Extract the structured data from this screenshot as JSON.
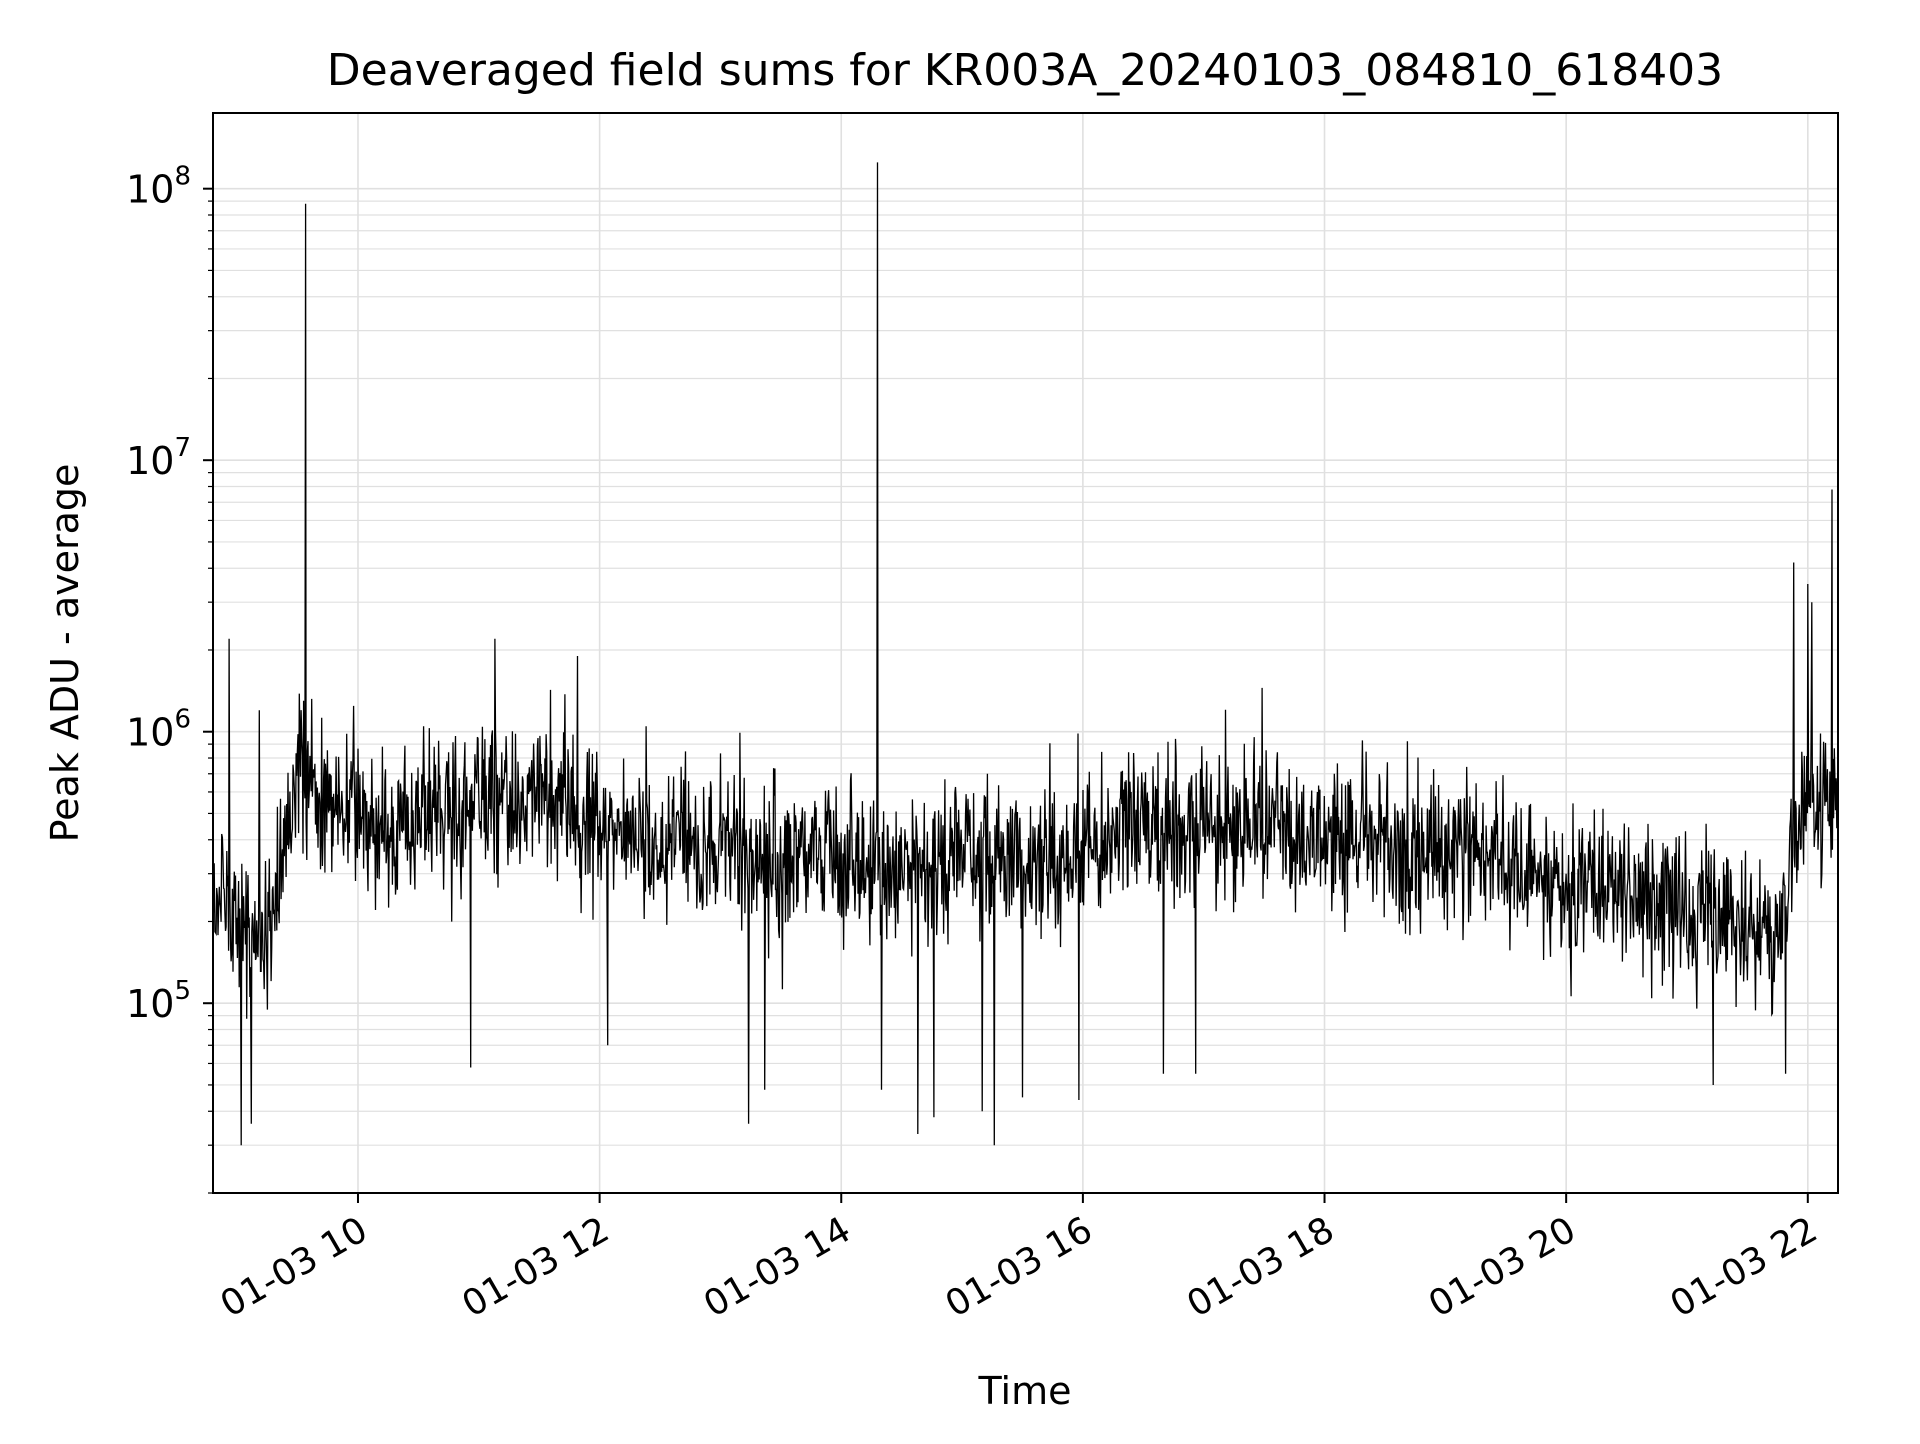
{
  "chart_data": {
    "type": "line",
    "title": "Deaveraged field sums for KR003A_20240103_084810_618403",
    "xlabel": "Time",
    "ylabel": "Peak ADU - average",
    "x_range": [
      "2024-01-03 08:48",
      "2024-01-03 22:15"
    ],
    "y_range": [
      20000,
      190000000
    ],
    "yscale": "log",
    "grid": true,
    "x_tick_values": [
      "2024-01-03 10:00",
      "2024-01-03 12:00",
      "2024-01-03 14:00",
      "2024-01-03 16:00",
      "2024-01-03 18:00",
      "2024-01-03 20:00",
      "2024-01-03 22:00"
    ],
    "x_tick_labels": [
      "01-03 10",
      "01-03 12",
      "01-03 14",
      "01-03 16",
      "01-03 18",
      "01-03 20",
      "01-03 22"
    ],
    "y_tick_values": [
      100000,
      1000000,
      10000000,
      100000000
    ],
    "y_tick_labels": [
      {
        "base": "10",
        "exp": "5"
      },
      {
        "base": "10",
        "exp": "6"
      },
      {
        "base": "10",
        "exp": "7"
      },
      {
        "base": "10",
        "exp": "8"
      }
    ],
    "colors": {
      "line": "#000000",
      "grid": "#e0e0e0",
      "axes": "#000000"
    },
    "series": [
      {
        "x": [
          "2024-01-03 08:50",
          "2024-01-03 09:00",
          "2024-01-03 09:15",
          "2024-01-03 09:30",
          "2024-01-03 09:45",
          "2024-01-03 10:00",
          "2024-01-03 10:15",
          "2024-01-03 10:30",
          "2024-01-03 10:45",
          "2024-01-03 11:00",
          "2024-01-03 11:15",
          "2024-01-03 11:30",
          "2024-01-03 11:45",
          "2024-01-03 12:00",
          "2024-01-03 12:15",
          "2024-01-03 12:30",
          "2024-01-03 12:45",
          "2024-01-03 13:00",
          "2024-01-03 13:15",
          "2024-01-03 13:30",
          "2024-01-03 13:45",
          "2024-01-03 14:00",
          "2024-01-03 14:15",
          "2024-01-03 14:30",
          "2024-01-03 14:45",
          "2024-01-03 15:00",
          "2024-01-03 15:15",
          "2024-01-03 15:30",
          "2024-01-03 15:45",
          "2024-01-03 16:00",
          "2024-01-03 16:15",
          "2024-01-03 16:30",
          "2024-01-03 16:45",
          "2024-01-03 17:00",
          "2024-01-03 17:15",
          "2024-01-03 17:30",
          "2024-01-03 17:45",
          "2024-01-03 18:00",
          "2024-01-03 18:15",
          "2024-01-03 18:30",
          "2024-01-03 18:45",
          "2024-01-03 19:00",
          "2024-01-03 19:15",
          "2024-01-03 19:30",
          "2024-01-03 19:45",
          "2024-01-03 20:00",
          "2024-01-03 20:15",
          "2024-01-03 20:30",
          "2024-01-03 20:45",
          "2024-01-03 21:00",
          "2024-01-03 21:15",
          "2024-01-03 21:30",
          "2024-01-03 21:45",
          "2024-01-03 21:55",
          "2024-01-03 22:05",
          "2024-01-03 22:14"
        ],
        "y": [
          250000,
          200000,
          170000,
          700000,
          550000,
          500000,
          480000,
          520000,
          500000,
          520000,
          580000,
          560000,
          540000,
          430000,
          420000,
          400000,
          380000,
          390000,
          360000,
          350000,
          350000,
          330000,
          320000,
          310000,
          310000,
          330000,
          340000,
          350000,
          360000,
          380000,
          420000,
          430000,
          440000,
          450000,
          460000,
          460000,
          450000,
          440000,
          410000,
          380000,
          350000,
          340000,
          380000,
          320000,
          290000,
          260000,
          250000,
          250000,
          240000,
          230000,
          210000,
          190000,
          180000,
          470000,
          520000,
          560000
        ]
      }
    ],
    "spikes": [
      {
        "x": "2024-01-03 08:56",
        "y": 2200000
      },
      {
        "x": "2024-01-03 09:11",
        "y": 1200000
      },
      {
        "x": "2024-01-03 09:34",
        "y": 88000000
      },
      {
        "x": "2024-01-03 11:08",
        "y": 2200000
      },
      {
        "x": "2024-01-03 11:49",
        "y": 1900000
      },
      {
        "x": "2024-01-03 14:18",
        "y": 125000000
      },
      {
        "x": "2024-01-03 17:29",
        "y": 1450000
      },
      {
        "x": "2024-01-03 21:53",
        "y": 4200000
      },
      {
        "x": "2024-01-03 22:00",
        "y": 3500000
      },
      {
        "x": "2024-01-03 22:02",
        "y": 3000000
      },
      {
        "x": "2024-01-03 22:12",
        "y": 7800000
      }
    ],
    "dips": [
      {
        "x": "2024-01-03 09:02",
        "y": 30000
      },
      {
        "x": "2024-01-03 09:07",
        "y": 36000
      },
      {
        "x": "2024-01-03 10:56",
        "y": 58000
      },
      {
        "x": "2024-01-03 12:04",
        "y": 70000
      },
      {
        "x": "2024-01-03 13:14",
        "y": 36000
      },
      {
        "x": "2024-01-03 13:22",
        "y": 48000
      },
      {
        "x": "2024-01-03 14:20",
        "y": 48000
      },
      {
        "x": "2024-01-03 14:38",
        "y": 33000
      },
      {
        "x": "2024-01-03 14:46",
        "y": 38000
      },
      {
        "x": "2024-01-03 15:10",
        "y": 40000
      },
      {
        "x": "2024-01-03 15:16",
        "y": 30000
      },
      {
        "x": "2024-01-03 15:30",
        "y": 45000
      },
      {
        "x": "2024-01-03 15:58",
        "y": 44000
      },
      {
        "x": "2024-01-03 16:40",
        "y": 55000
      },
      {
        "x": "2024-01-03 16:56",
        "y": 55000
      },
      {
        "x": "2024-01-03 21:13",
        "y": 50000
      },
      {
        "x": "2024-01-03 21:49",
        "y": 55000
      }
    ]
  }
}
